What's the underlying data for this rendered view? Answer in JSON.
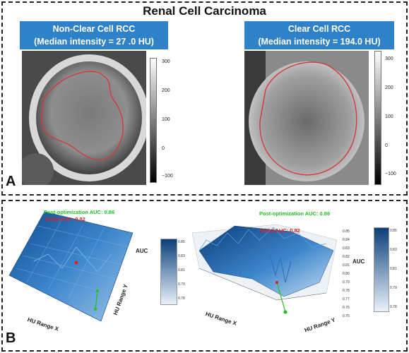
{
  "title": "Renal Cell Carcinoma",
  "panel_a": {
    "label": "A",
    "left_header_line1": "Non-Clear Cell RCC",
    "left_header_line2": "(Median intensity = 27 .0 HU)",
    "right_header_line1": "Clear Cell RCC",
    "right_header_line2": "(Median intensity = 194.0 HU)",
    "colorbar_ticks": [
      "300",
      "200",
      "100",
      "0",
      "−100"
    ]
  },
  "panel_b": {
    "label": "B",
    "left_plot": {
      "post_note": "Post-optimization AUC: 0.86",
      "initial_note": "Initial AUC: 0.82",
      "zlabel": "AUC",
      "xlabel": "HU Range X",
      "ylabel": "HU Range Y"
    },
    "right_plot": {
      "post_note": "Post-optimization AUC: 0.86",
      "initial_note": "Initial AUC: 0.82",
      "zlabel": "AUC",
      "xlabel": "HU Range X",
      "ylabel": "HU Range Y",
      "ztick_labels": [
        "0.85",
        "0.84",
        "0.83",
        "0.82",
        "0.81",
        "0.80",
        "0.79",
        "0.78",
        "0.77",
        "0.76",
        "0.75"
      ],
      "colorbar_ticks": [
        "0.85",
        "0.83",
        "0.81",
        "0.79",
        "0.78"
      ],
      "colorbar2_ticks": [
        "0.85",
        "0.83",
        "0.81",
        "0.79",
        "0.78"
      ]
    },
    "colors": {
      "post": "#22c21f",
      "initial": "#e02020",
      "surface": "#1f5fa8"
    }
  }
}
